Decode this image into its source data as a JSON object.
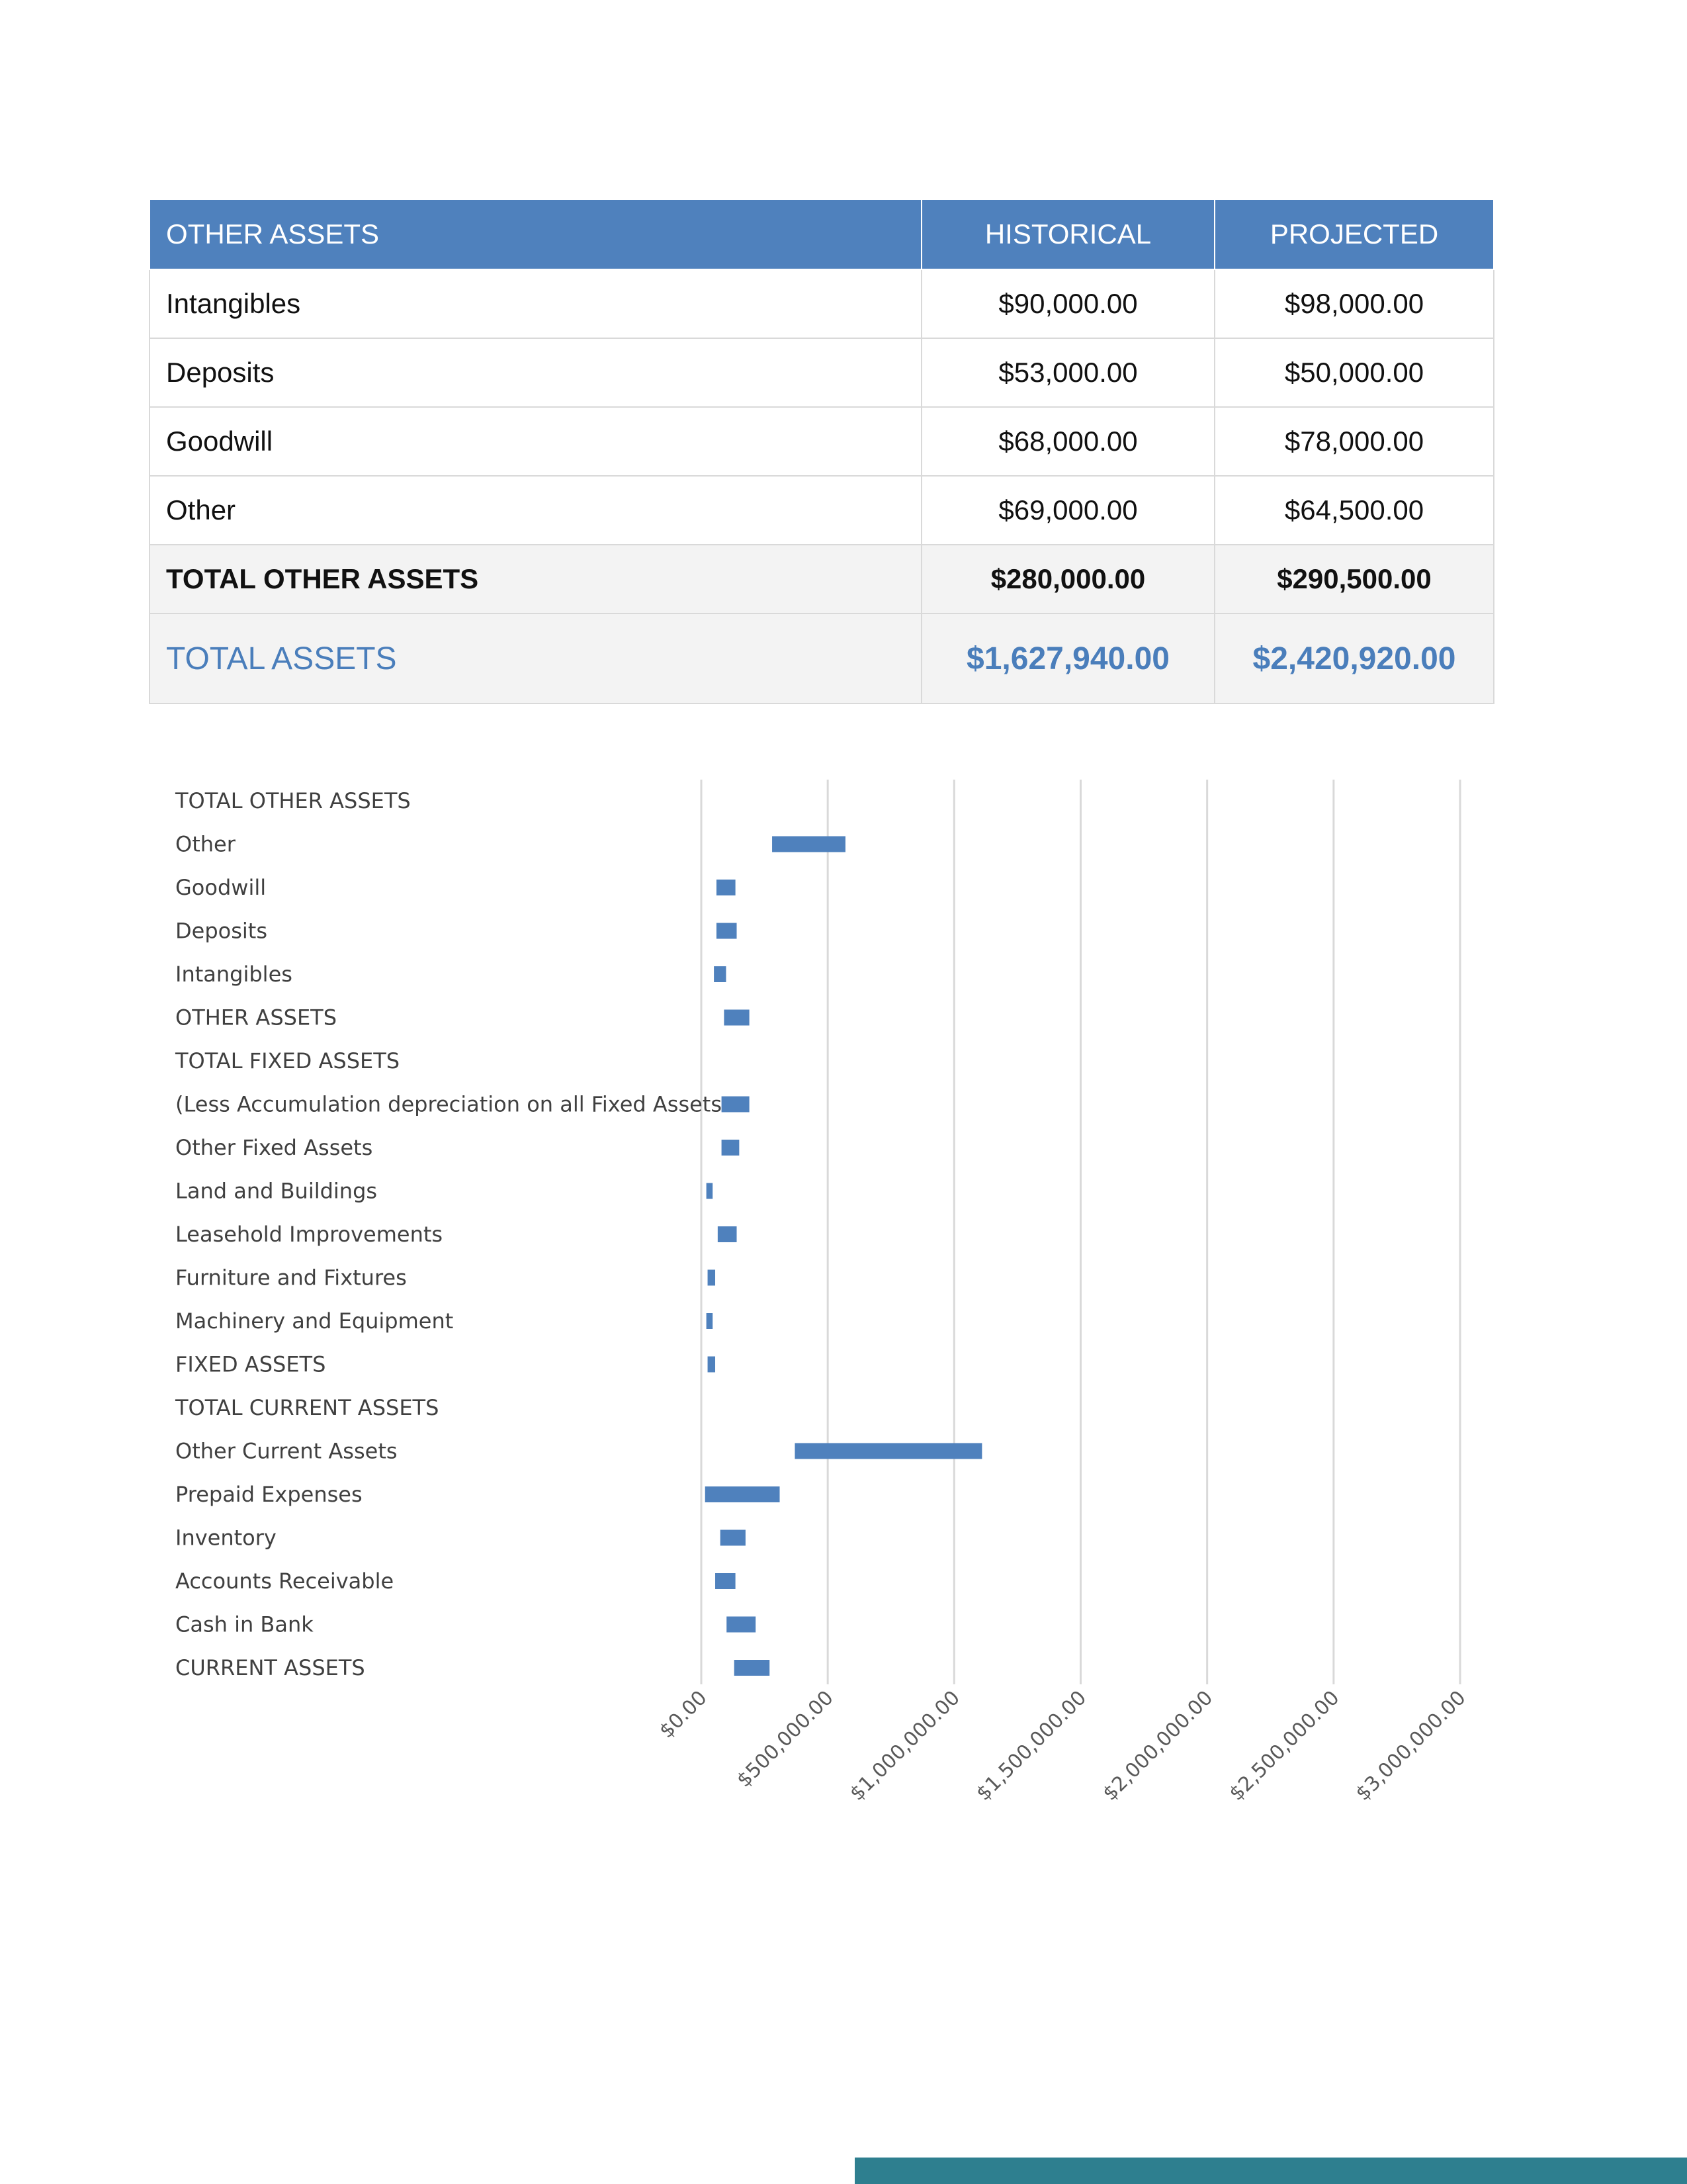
{
  "table": {
    "headers": [
      "OTHER ASSETS",
      "HISTORICAL",
      "PROJECTED"
    ],
    "rows": [
      {
        "label": "Intangibles",
        "historical": "$90,000.00",
        "projected": "$98,000.00"
      },
      {
        "label": "Deposits",
        "historical": "$53,000.00",
        "projected": "$50,000.00"
      },
      {
        "label": "Goodwill",
        "historical": "$68,000.00",
        "projected": "$78,000.00"
      },
      {
        "label": "Other",
        "historical": "$69,000.00",
        "projected": "$64,500.00"
      }
    ],
    "total_other": {
      "label": "TOTAL OTHER ASSETS",
      "historical": "$280,000.00",
      "projected": "$290,500.00"
    },
    "total_assets": {
      "label": "TOTAL ASSETS",
      "historical": "$1,627,940.00",
      "projected": "$2,420,920.00"
    },
    "colors": {
      "header_bg": "#4f81bd",
      "total_assets_text": "#4a7ebb"
    }
  },
  "chart_data": {
    "type": "bar",
    "orientation": "horizontal",
    "categories": [
      "TOTAL OTHER ASSETS",
      "Other",
      "Goodwill",
      "Deposits",
      "Intangibles",
      "OTHER ASSETS",
      "TOTAL FIXED ASSETS",
      "(Less Accumulation depreciation on all Fixed Assets",
      "Other Fixed Assets",
      "Land and Buildings",
      "Leasehold Improvements",
      "Furniture and Fixtures",
      "Machinery and Equipment",
      "FIXED ASSETS",
      "TOTAL CURRENT ASSETS",
      "Other Current Assets",
      "Prepaid Expenses",
      "Inventory",
      "Accounts Receivable",
      "Cash in Bank",
      "CURRENT ASSETS"
    ],
    "ranges": [
      null,
      [
        280000,
        570000
      ],
      [
        60000,
        135000
      ],
      [
        60000,
        140000
      ],
      [
        50000,
        98000
      ],
      [
        90000,
        190000
      ],
      null,
      [
        80000,
        190000
      ],
      [
        80000,
        150000
      ],
      [
        20000,
        45000
      ],
      [
        65000,
        140000
      ],
      [
        25000,
        55000
      ],
      [
        20000,
        45000
      ],
      [
        25000,
        55000
      ],
      null,
      [
        370000,
        1110000
      ],
      [
        15000,
        310000
      ],
      [
        75000,
        175000
      ],
      [
        55000,
        135000
      ],
      [
        100000,
        215000
      ],
      [
        130000,
        270000
      ]
    ],
    "xticks": [
      "$0.00",
      "$500,000.00",
      "$1,000,000.00",
      "$1,500,000.00",
      "$2,000,000.00",
      "$2,500,000.00",
      "$3,000,000.00"
    ],
    "xlim": [
      0,
      3000000
    ],
    "grid": true,
    "bar_color": "#4f81bd"
  },
  "footer": {
    "band_color": "#2e7f8f"
  }
}
